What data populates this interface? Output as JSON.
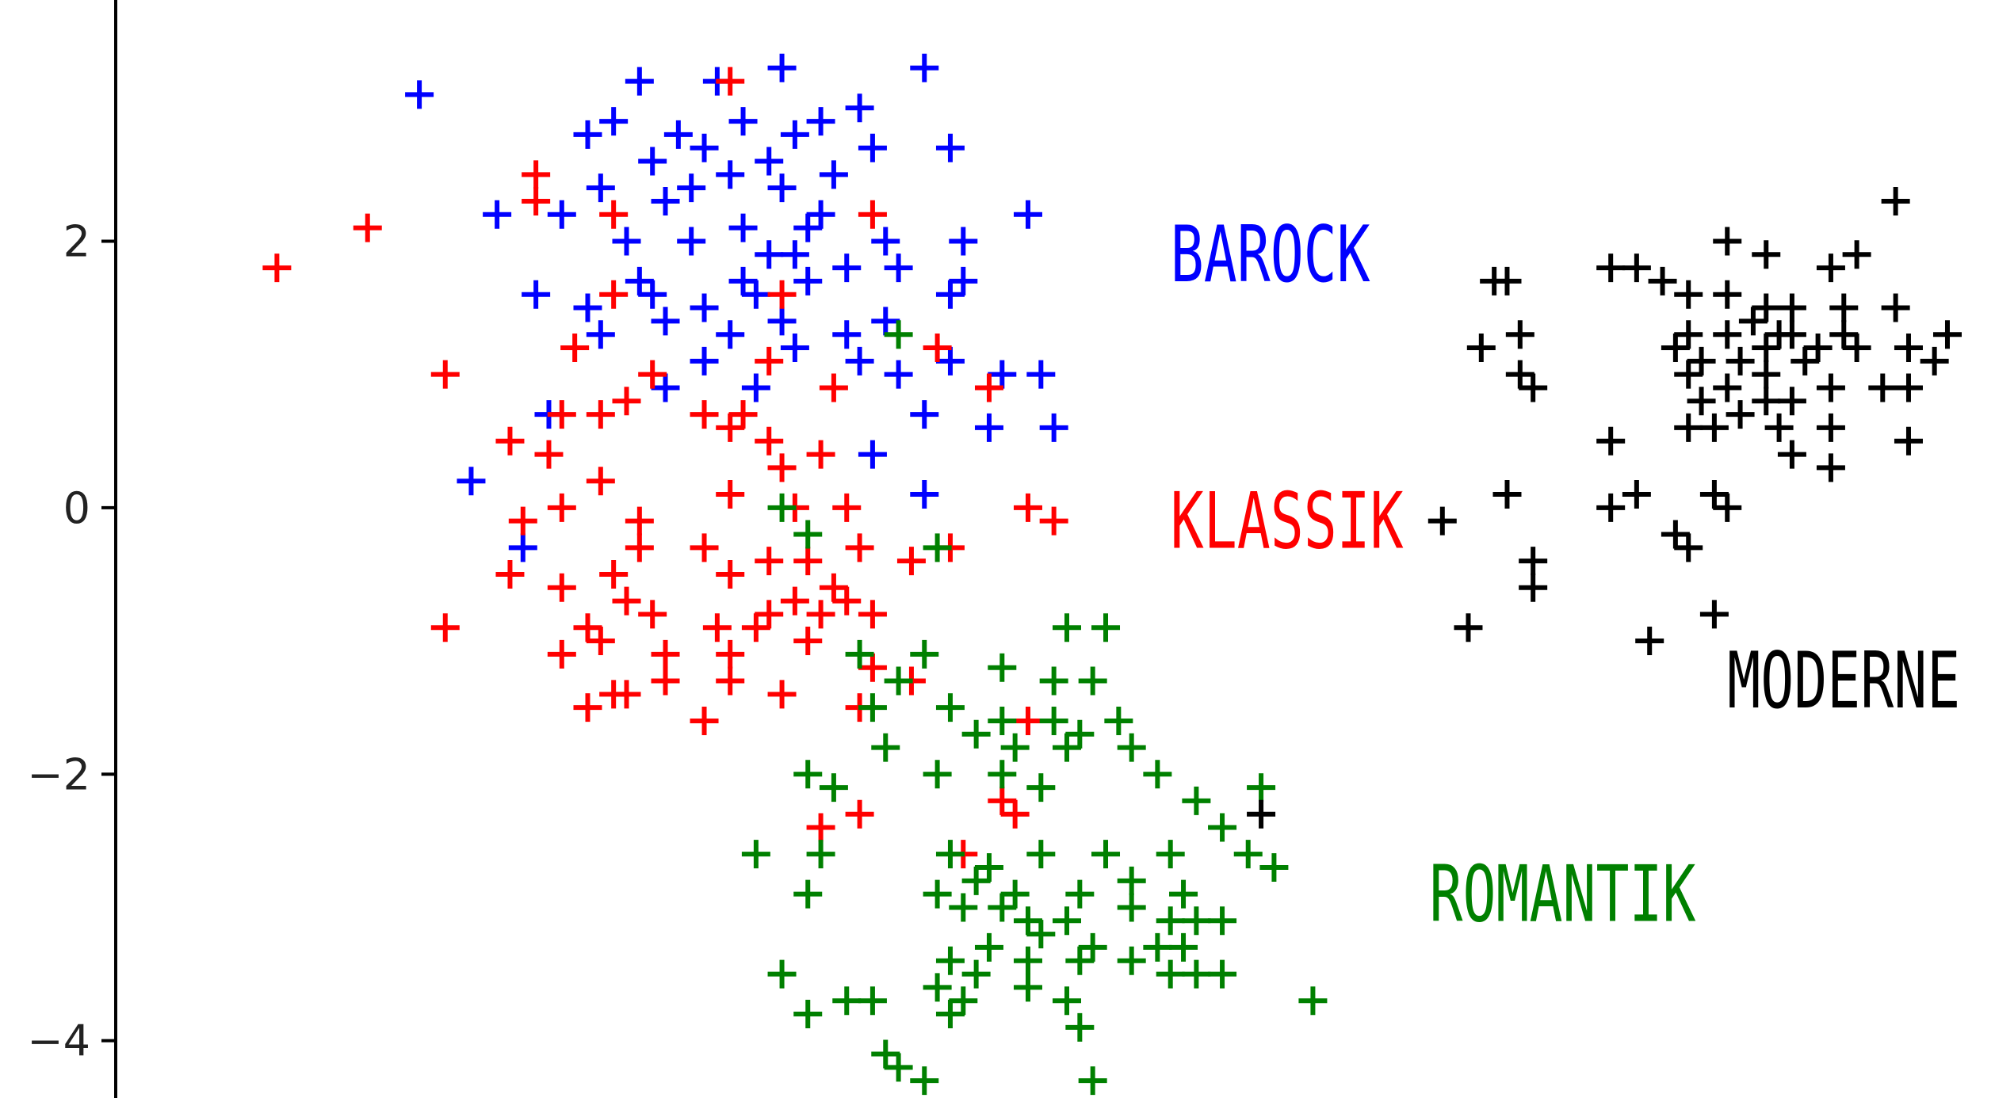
{
  "chart_data": {
    "type": "scatter",
    "title": "",
    "xlabel": "",
    "ylabel": "",
    "ylim": [
      -4.43,
      3.81
    ],
    "xlim": [
      -1.0,
      14.0
    ],
    "yticks": [
      2,
      0,
      -2,
      -4
    ],
    "ytick_labels": [
      "2",
      "0",
      "−2",
      "−4"
    ],
    "marker": "+",
    "grid": false,
    "legend": "none",
    "series": [
      {
        "name": "BAROCK",
        "color": "#0000ff",
        "label_x": 6.9,
        "label_y": 1.7,
        "points": [
          [
            1.1,
            3.1
          ],
          [
            2.8,
            3.2
          ],
          [
            3.4,
            3.2
          ],
          [
            3.9,
            3.3
          ],
          [
            5.0,
            3.3
          ],
          [
            2.6,
            2.9
          ],
          [
            3.1,
            2.8
          ],
          [
            3.6,
            2.9
          ],
          [
            4.0,
            2.8
          ],
          [
            4.2,
            2.9
          ],
          [
            4.5,
            3.0
          ],
          [
            2.4,
            2.8
          ],
          [
            2.9,
            2.6
          ],
          [
            3.3,
            2.7
          ],
          [
            3.8,
            2.6
          ],
          [
            4.3,
            2.5
          ],
          [
            4.6,
            2.7
          ],
          [
            5.2,
            2.7
          ],
          [
            2.5,
            2.4
          ],
          [
            3.0,
            2.3
          ],
          [
            3.5,
            2.5
          ],
          [
            3.9,
            2.4
          ],
          [
            4.2,
            2.2
          ],
          [
            1.7,
            2.2
          ],
          [
            2.2,
            2.2
          ],
          [
            2.7,
            2.0
          ],
          [
            3.2,
            2.0
          ],
          [
            3.6,
            2.1
          ],
          [
            4.0,
            1.9
          ],
          [
            4.4,
            1.8
          ],
          [
            4.7,
            2.0
          ],
          [
            5.3,
            2.0
          ],
          [
            5.8,
            2.2
          ],
          [
            5.3,
            1.7
          ],
          [
            2.0,
            1.6
          ],
          [
            2.4,
            1.5
          ],
          [
            2.9,
            1.6
          ],
          [
            3.3,
            1.5
          ],
          [
            3.7,
            1.6
          ],
          [
            3.9,
            1.4
          ],
          [
            4.1,
            1.7
          ],
          [
            4.4,
            1.3
          ],
          [
            4.8,
            1.8
          ],
          [
            5.2,
            1.6
          ],
          [
            2.5,
            1.3
          ],
          [
            3.0,
            1.4
          ],
          [
            3.5,
            1.3
          ],
          [
            4.0,
            1.2
          ],
          [
            4.5,
            1.1
          ],
          [
            3.3,
            1.1
          ],
          [
            3.7,
            0.9
          ],
          [
            4.8,
            1.0
          ],
          [
            5.2,
            1.1
          ],
          [
            5.6,
            1.0
          ],
          [
            5.5,
            0.6
          ],
          [
            5.9,
            1.0
          ],
          [
            5.0,
            0.7
          ],
          [
            4.6,
            0.4
          ],
          [
            6.0,
            0.6
          ],
          [
            3.0,
            0.9
          ],
          [
            2.1,
            0.7
          ],
          [
            1.5,
            0.2
          ],
          [
            1.9,
            -0.3
          ],
          [
            5.0,
            0.1
          ],
          [
            2.8,
            1.7
          ],
          [
            3.2,
            2.4
          ],
          [
            4.7,
            1.4
          ],
          [
            3.8,
            1.9
          ],
          [
            3.6,
            1.7
          ],
          [
            4.1,
            2.1
          ]
        ]
      },
      {
        "name": "KLASSIK",
        "color": "#ff0000",
        "label_x": 6.9,
        "label_y": -0.3,
        "points": [
          [
            0.0,
            1.8
          ],
          [
            0.7,
            2.1
          ],
          [
            2.6,
            2.2
          ],
          [
            3.5,
            3.2
          ],
          [
            2.0,
            2.5
          ],
          [
            2.0,
            2.3
          ],
          [
            4.6,
            2.2
          ],
          [
            3.9,
            1.6
          ],
          [
            1.3,
            1.0
          ],
          [
            2.3,
            1.2
          ],
          [
            2.6,
            1.6
          ],
          [
            2.9,
            1.0
          ],
          [
            3.8,
            1.1
          ],
          [
            4.3,
            0.9
          ],
          [
            5.1,
            1.2
          ],
          [
            5.5,
            0.9
          ],
          [
            3.6,
            0.7
          ],
          [
            3.3,
            0.7
          ],
          [
            2.7,
            0.8
          ],
          [
            2.5,
            0.7
          ],
          [
            2.2,
            0.7
          ],
          [
            1.8,
            0.5
          ],
          [
            2.1,
            0.4
          ],
          [
            3.5,
            0.6
          ],
          [
            3.8,
            0.5
          ],
          [
            4.2,
            0.4
          ],
          [
            3.9,
            0.3
          ],
          [
            2.5,
            0.2
          ],
          [
            2.2,
            0.0
          ],
          [
            1.9,
            -0.1
          ],
          [
            2.8,
            -0.1
          ],
          [
            3.5,
            0.1
          ],
          [
            4.0,
            0.0
          ],
          [
            4.4,
            0.0
          ],
          [
            5.8,
            0.0
          ],
          [
            6.0,
            -0.1
          ],
          [
            2.8,
            -0.3
          ],
          [
            3.3,
            -0.3
          ],
          [
            2.6,
            -0.5
          ],
          [
            1.8,
            -0.5
          ],
          [
            3.8,
            -0.4
          ],
          [
            4.1,
            -0.4
          ],
          [
            4.5,
            -0.3
          ],
          [
            4.9,
            -0.4
          ],
          [
            5.2,
            -0.3
          ],
          [
            2.7,
            -0.7
          ],
          [
            3.5,
            -0.5
          ],
          [
            3.8,
            -0.8
          ],
          [
            4.3,
            -0.6
          ],
          [
            4.6,
            -0.8
          ],
          [
            2.4,
            -0.9
          ],
          [
            2.9,
            -0.8
          ],
          [
            3.4,
            -0.9
          ],
          [
            3.7,
            -0.9
          ],
          [
            4.2,
            -0.8
          ],
          [
            4.4,
            -0.7
          ],
          [
            1.3,
            -0.9
          ],
          [
            2.2,
            -1.1
          ],
          [
            2.5,
            -1.0
          ],
          [
            3.0,
            -1.1
          ],
          [
            3.5,
            -1.1
          ],
          [
            4.1,
            -1.0
          ],
          [
            2.6,
            -1.4
          ],
          [
            3.0,
            -1.3
          ],
          [
            3.5,
            -1.3
          ],
          [
            2.4,
            -1.5
          ],
          [
            2.7,
            -1.4
          ],
          [
            3.3,
            -1.6
          ],
          [
            4.6,
            -1.2
          ],
          [
            4.9,
            -1.3
          ],
          [
            4.5,
            -1.5
          ],
          [
            5.8,
            -1.6
          ],
          [
            4.2,
            -2.4
          ],
          [
            4.5,
            -2.3
          ],
          [
            5.6,
            -2.2
          ],
          [
            5.7,
            -2.3
          ],
          [
            5.3,
            -2.6
          ],
          [
            3.9,
            -1.4
          ],
          [
            2.2,
            -0.6
          ],
          [
            4.0,
            -0.7
          ]
        ]
      },
      {
        "name": "ROMANTIK",
        "color": "#008000",
        "label_x": 8.9,
        "label_y": -3.1,
        "points": [
          [
            4.8,
            1.3
          ],
          [
            3.9,
            0.0
          ],
          [
            4.1,
            -0.2
          ],
          [
            5.1,
            -0.3
          ],
          [
            4.5,
            -1.1
          ],
          [
            4.8,
            -1.3
          ],
          [
            5.0,
            -1.1
          ],
          [
            5.6,
            -1.2
          ],
          [
            6.1,
            -0.9
          ],
          [
            6.4,
            -0.9
          ],
          [
            6.0,
            -1.3
          ],
          [
            6.3,
            -1.3
          ],
          [
            4.6,
            -1.5
          ],
          [
            5.2,
            -1.5
          ],
          [
            5.6,
            -1.6
          ],
          [
            6.0,
            -1.6
          ],
          [
            6.2,
            -1.7
          ],
          [
            6.5,
            -1.6
          ],
          [
            4.7,
            -1.8
          ],
          [
            5.4,
            -1.7
          ],
          [
            5.7,
            -1.8
          ],
          [
            6.1,
            -1.8
          ],
          [
            6.6,
            -1.8
          ],
          [
            4.1,
            -2.0
          ],
          [
            4.3,
            -2.1
          ],
          [
            5.1,
            -2.0
          ],
          [
            5.6,
            -2.0
          ],
          [
            5.9,
            -2.1
          ],
          [
            6.8,
            -2.0
          ],
          [
            7.6,
            -2.1
          ],
          [
            7.5,
            -2.6
          ],
          [
            3.7,
            -2.6
          ],
          [
            4.2,
            -2.6
          ],
          [
            4.1,
            -2.9
          ],
          [
            5.2,
            -2.6
          ],
          [
            5.5,
            -2.7
          ],
          [
            5.9,
            -2.6
          ],
          [
            6.4,
            -2.6
          ],
          [
            6.9,
            -2.6
          ],
          [
            7.7,
            -2.7
          ],
          [
            5.4,
            -2.8
          ],
          [
            5.7,
            -2.9
          ],
          [
            6.2,
            -2.9
          ],
          [
            6.6,
            -2.8
          ],
          [
            5.1,
            -2.9
          ],
          [
            5.3,
            -3.0
          ],
          [
            5.6,
            -3.0
          ],
          [
            5.8,
            -3.1
          ],
          [
            6.1,
            -3.1
          ],
          [
            6.6,
            -3.0
          ],
          [
            6.9,
            -3.1
          ],
          [
            7.1,
            -3.1
          ],
          [
            7.3,
            -3.1
          ],
          [
            5.5,
            -3.3
          ],
          [
            5.9,
            -3.2
          ],
          [
            6.3,
            -3.3
          ],
          [
            6.8,
            -3.3
          ],
          [
            7.0,
            -3.3
          ],
          [
            5.2,
            -3.4
          ],
          [
            5.8,
            -3.4
          ],
          [
            6.2,
            -3.4
          ],
          [
            6.6,
            -3.4
          ],
          [
            7.1,
            -3.5
          ],
          [
            3.9,
            -3.5
          ],
          [
            4.4,
            -3.7
          ],
          [
            4.6,
            -3.7
          ],
          [
            5.1,
            -3.6
          ],
          [
            5.3,
            -3.7
          ],
          [
            5.8,
            -3.6
          ],
          [
            6.1,
            -3.7
          ],
          [
            6.9,
            -3.5
          ],
          [
            7.3,
            -3.5
          ],
          [
            8.0,
            -3.7
          ],
          [
            4.1,
            -3.8
          ],
          [
            5.2,
            -3.8
          ],
          [
            6.2,
            -3.9
          ],
          [
            4.7,
            -4.1
          ],
          [
            4.8,
            -4.2
          ],
          [
            5.0,
            -4.3
          ],
          [
            6.3,
            -4.3
          ],
          [
            7.1,
            -2.2
          ],
          [
            7.3,
            -2.4
          ],
          [
            7.0,
            -2.9
          ],
          [
            5.4,
            -3.5
          ]
        ]
      },
      {
        "name": "MODERNE",
        "color": "#000000",
        "label_x": 11.2,
        "label_y": -1.5,
        "points": [
          [
            12.5,
            2.3
          ],
          [
            14.0,
            2.3
          ],
          [
            11.2,
            2.0
          ],
          [
            11.5,
            1.9
          ],
          [
            12.0,
            1.8
          ],
          [
            12.2,
            1.9
          ],
          [
            10.3,
            1.8
          ],
          [
            10.5,
            1.8
          ],
          [
            9.4,
            1.7
          ],
          [
            9.5,
            1.7
          ],
          [
            10.7,
            1.7
          ],
          [
            10.9,
            1.6
          ],
          [
            11.2,
            1.6
          ],
          [
            11.5,
            1.5
          ],
          [
            11.7,
            1.5
          ],
          [
            12.1,
            1.5
          ],
          [
            12.5,
            1.5
          ],
          [
            9.6,
            1.3
          ],
          [
            10.9,
            1.3
          ],
          [
            11.2,
            1.3
          ],
          [
            11.5,
            1.2
          ],
          [
            11.7,
            1.3
          ],
          [
            11.9,
            1.2
          ],
          [
            12.1,
            1.3
          ],
          [
            12.9,
            1.3
          ],
          [
            9.3,
            1.2
          ],
          [
            10.8,
            1.2
          ],
          [
            11.0,
            1.1
          ],
          [
            11.3,
            1.1
          ],
          [
            11.5,
            1.0
          ],
          [
            11.8,
            1.1
          ],
          [
            12.2,
            1.2
          ],
          [
            12.6,
            1.2
          ],
          [
            12.8,
            1.1
          ],
          [
            9.6,
            1.0
          ],
          [
            10.9,
            1.0
          ],
          [
            11.2,
            0.9
          ],
          [
            11.5,
            0.8
          ],
          [
            11.7,
            0.8
          ],
          [
            12.0,
            0.9
          ],
          [
            12.4,
            0.9
          ],
          [
            12.6,
            0.9
          ],
          [
            9.7,
            0.9
          ],
          [
            11.0,
            0.8
          ],
          [
            11.3,
            0.7
          ],
          [
            11.6,
            0.6
          ],
          [
            11.1,
            0.6
          ],
          [
            10.9,
            0.6
          ],
          [
            12.0,
            0.6
          ],
          [
            12.6,
            0.5
          ],
          [
            13.3,
            0.4
          ],
          [
            10.3,
            0.5
          ],
          [
            11.7,
            0.4
          ],
          [
            12.0,
            0.3
          ],
          [
            9.5,
            0.1
          ],
          [
            10.3,
            0.0
          ],
          [
            10.5,
            0.1
          ],
          [
            11.1,
            0.1
          ],
          [
            11.2,
            0.0
          ],
          [
            9.0,
            -0.1
          ],
          [
            10.8,
            -0.2
          ],
          [
            10.9,
            -0.3
          ],
          [
            9.7,
            -0.4
          ],
          [
            9.7,
            -0.6
          ],
          [
            9.2,
            -0.9
          ],
          [
            10.6,
            -1.0
          ],
          [
            11.1,
            -0.8
          ],
          [
            7.6,
            -2.3
          ],
          [
            11.4,
            1.4
          ],
          [
            11.6,
            1.3
          ]
        ]
      }
    ]
  }
}
